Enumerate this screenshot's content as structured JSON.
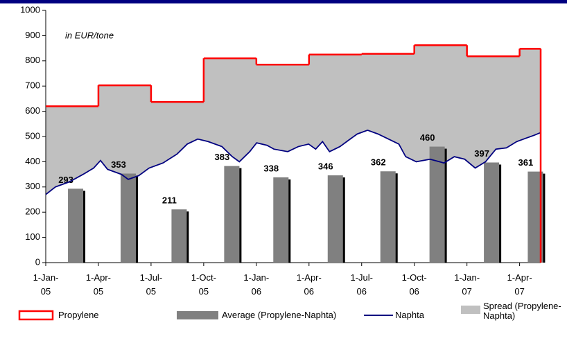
{
  "chart_data": {
    "type": "combo",
    "annotation": "in EUR/tone",
    "xlim": [
      0,
      28.2
    ],
    "xticks": [
      {
        "value": 0,
        "label": "1-Jan-05"
      },
      {
        "value": 3,
        "label": "1-Apr-05"
      },
      {
        "value": 6,
        "label": "1-Jul-05"
      },
      {
        "value": 9,
        "label": "1-Oct-05"
      },
      {
        "value": 12,
        "label": "1-Jan-06"
      },
      {
        "value": 15,
        "label": "1-Apr-06"
      },
      {
        "value": 18,
        "label": "1-Jul-06"
      },
      {
        "value": 21,
        "label": "1-Oct-06"
      },
      {
        "value": 24,
        "label": "1-Jan-07"
      },
      {
        "value": 27,
        "label": "1-Apr-07"
      }
    ],
    "ylim": [
      0,
      1000
    ],
    "yticks": [
      0,
      100,
      200,
      300,
      400,
      500,
      600,
      700,
      800,
      900,
      1000
    ],
    "grid": false,
    "legend": "bottom",
    "series": [
      {
        "name": "Propylene",
        "type": "step",
        "color": "#ff0000",
        "x": [
          0,
          3,
          6,
          9,
          12,
          15,
          18,
          21,
          24,
          27
        ],
        "values": [
          620,
          703,
          637,
          810,
          785,
          825,
          828,
          862,
          818,
          848
        ]
      },
      {
        "name": "Average (Propylene-Naphta)",
        "type": "bar",
        "color": "#808080",
        "x": [
          1.7,
          4.7,
          7.6,
          10.6,
          13.4,
          16.5,
          19.5,
          22.3,
          25.4,
          27.9
        ],
        "values": [
          293,
          353,
          211,
          383,
          338,
          346,
          362,
          460,
          397,
          361
        ]
      },
      {
        "name": "Naphta",
        "type": "line",
        "color": "#000080",
        "x": [
          0,
          0.55,
          1.34,
          2.13,
          2.73,
          3.12,
          3.52,
          4.31,
          4.7,
          5.3,
          5.89,
          6.68,
          7.47,
          8.06,
          8.66,
          9.25,
          10.04,
          10.63,
          11.03,
          11.62,
          12.02,
          12.61,
          13.0,
          13.79,
          14.39,
          14.98,
          15.38,
          15.77,
          16.17,
          16.76,
          17.35,
          17.75,
          18.34,
          18.93,
          19.53,
          20.12,
          20.51,
          21.11,
          21.9,
          22.69,
          23.28,
          23.87,
          24.47,
          25.06,
          25.65,
          26.25,
          26.84,
          27.43,
          27.83,
          28.18
        ],
        "values": [
          270,
          300,
          320,
          350,
          375,
          405,
          370,
          350,
          330,
          345,
          375,
          395,
          430,
          470,
          490,
          480,
          460,
          420,
          400,
          440,
          475,
          465,
          450,
          440,
          460,
          470,
          450,
          480,
          440,
          460,
          490,
          510,
          525,
          510,
          490,
          470,
          420,
          400,
          410,
          395,
          420,
          410,
          375,
          400,
          450,
          455,
          480,
          495,
          505,
          515
        ]
      },
      {
        "name": "Spread (Propylene-Naphta)",
        "type": "area-between",
        "color": "#c0c0c0",
        "between": [
          "Propylene",
          "Naphta"
        ]
      }
    ]
  }
}
